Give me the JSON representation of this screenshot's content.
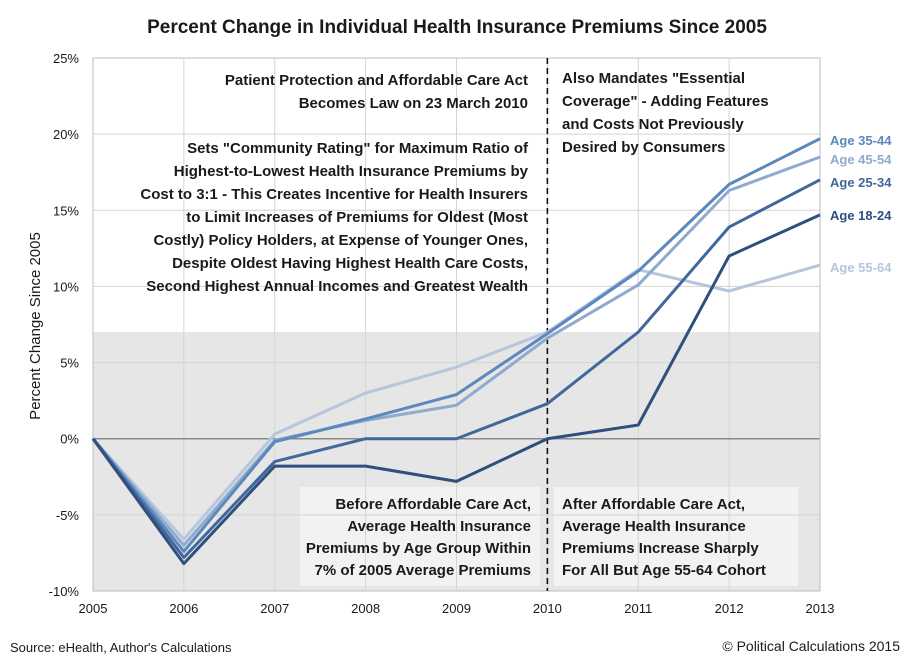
{
  "chart_data": {
    "type": "line",
    "title": "Percent Change in Individual Health Insurance Premiums Since 2005",
    "ylabel": "Percent Change Since 2005",
    "xlabel": "",
    "x": [
      "2005",
      "2006",
      "2007",
      "2008",
      "2009",
      "2010",
      "2011",
      "2012",
      "2013"
    ],
    "ylim": [
      -10,
      25
    ],
    "y_ticks": [
      "-10%",
      "-5%",
      "0%",
      "5%",
      "10%",
      "15%",
      "20%",
      "25%"
    ],
    "grid": true,
    "shaded_band": [
      -10,
      7
    ],
    "divider_at": "2010",
    "series": [
      {
        "name": "Age 35-44",
        "color": "#5b88bd",
        "values": [
          0,
          -7.4,
          -0.2,
          1.3,
          2.9,
          6.9,
          11.0,
          16.7,
          19.7
        ]
      },
      {
        "name": "Age 45-54",
        "color": "#8faacf",
        "values": [
          0,
          -7.0,
          -0.1,
          1.2,
          2.2,
          6.6,
          10.1,
          16.3,
          18.5
        ]
      },
      {
        "name": "Age 25-34",
        "color": "#40689c",
        "values": [
          0,
          -7.8,
          -1.5,
          0.0,
          0.0,
          2.3,
          7.0,
          13.9,
          17.0
        ]
      },
      {
        "name": "Age 18-24",
        "color": "#2f4f7c",
        "values": [
          0,
          -8.2,
          -1.8,
          -1.8,
          -2.8,
          0.0,
          0.9,
          12.0,
          14.7
        ]
      },
      {
        "name": "Age 55-64",
        "color": "#b6c6de",
        "values": [
          0,
          -6.6,
          0.3,
          3.0,
          4.7,
          7.0,
          11.1,
          9.7,
          11.4
        ]
      }
    ],
    "annotations": {
      "ppaca": [
        "Patient Protection and Affordable Care Act",
        "Becomes Law on 23 March 2010"
      ],
      "community": [
        "Sets \"Community Rating\" for Maximum Ratio of",
        "Highest-to-Lowest Health Insurance Premiums by",
        "Cost to 3:1 - This Creates Incentive for Health Insurers",
        "to Limit Increases of Premiums for Oldest (Most",
        "Costly) Policy Holders, at Expense of Younger Ones,",
        "Despite Oldest Having Highest Health Care Costs,",
        "Second Highest Annual Incomes and Greatest Wealth"
      ],
      "mandates": [
        "Also Mandates \"Essential",
        "Coverage\" - Adding Features",
        "and Costs Not Previously",
        "Desired by Consumers"
      ],
      "before": [
        "Before Affordable Care Act,",
        "Average Health Insurance",
        "Premiums by Age Group Within",
        "7% of 2005 Average Premiums"
      ],
      "after": [
        "After Affordable Care Act,",
        "Average Health Insurance",
        "Premiums Increase Sharply",
        "For All But Age 55-64 Cohort"
      ]
    }
  },
  "footer": {
    "source": "Source: eHealth, Author's Calculations",
    "credit": "© Political Calculations 2015"
  }
}
